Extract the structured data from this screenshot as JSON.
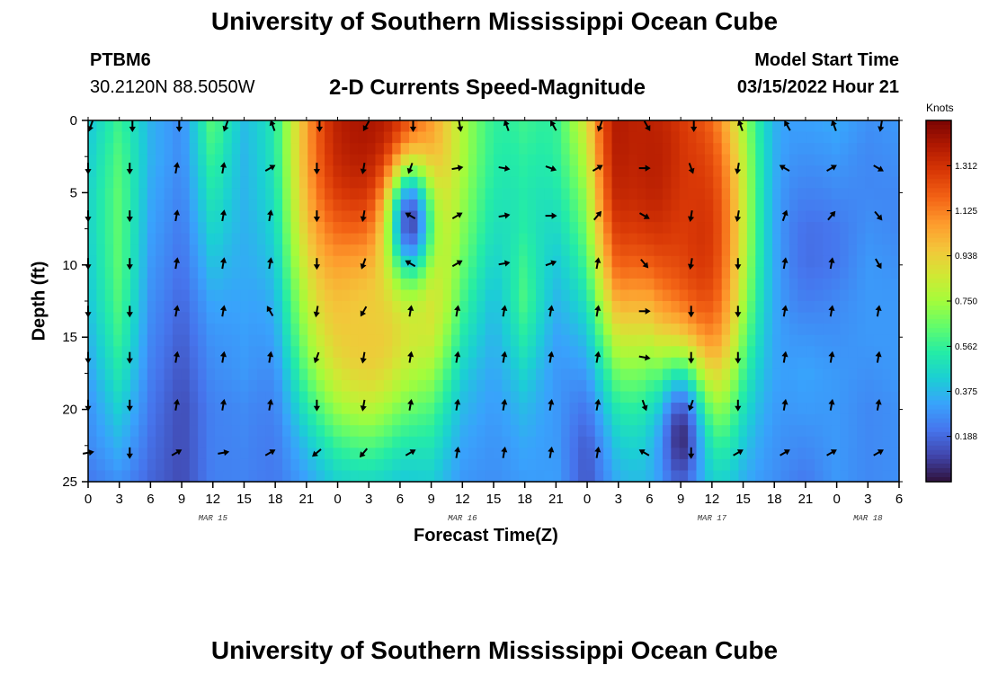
{
  "header": {
    "title": "University of Southern Mississippi Ocean Cube",
    "station_id": "PTBM6",
    "station_coords": "30.2120N  88.5050W",
    "plot_title": "2-D Currents Speed-Magnitude",
    "model_start_label": "Model Start Time",
    "model_start_value": "03/15/2022 Hour 21"
  },
  "footer": {
    "title": "University of Southern Mississippi Ocean Cube"
  },
  "chart_data": {
    "type": "heatmap",
    "title": "2-D Currents Speed-Magnitude",
    "xlabel": "Forecast Time(Z)",
    "ylabel": "Depth (ft)",
    "x_tick_labels": [
      "0",
      "3",
      "6",
      "9",
      "12",
      "15",
      "18",
      "21",
      "0",
      "3",
      "6",
      "9",
      "12",
      "15",
      "18",
      "21",
      "0",
      "3",
      "6",
      "9",
      "12",
      "15",
      "18",
      "21",
      "0",
      "3",
      "6"
    ],
    "x_tick_hours": [
      0,
      3,
      6,
      9,
      12,
      15,
      18,
      21,
      24,
      27,
      30,
      33,
      36,
      39,
      42,
      45,
      48,
      51,
      54,
      57,
      60,
      63,
      66,
      69,
      72,
      75,
      78
    ],
    "xlim": [
      0,
      78
    ],
    "day_labels": [
      {
        "text": "MAR 15",
        "hour": 12
      },
      {
        "text": "MAR 16",
        "hour": 36
      },
      {
        "text": "MAR 17",
        "hour": 60
      },
      {
        "text": "MAR 18",
        "hour": 75
      }
    ],
    "y_ticks": [
      0,
      5,
      10,
      15,
      20,
      25
    ],
    "ylim": [
      0,
      25
    ],
    "y_inverted": true,
    "colorbar": {
      "title": "Knots",
      "ticks": [
        "1.312",
        "1.125",
        "0.938",
        "0.750",
        "0.562",
        "0.375",
        "0.188"
      ],
      "tick_values": [
        1.312,
        1.125,
        0.938,
        0.75,
        0.562,
        0.375,
        0.188
      ],
      "range": [
        0,
        1.5
      ],
      "palette": [
        "#30123b",
        "#4145ab",
        "#4675ed",
        "#39a2fc",
        "#1bcfd4",
        "#24eca6",
        "#61fc6c",
        "#a4fc3b",
        "#d1e834",
        "#f3c63a",
        "#fe9b2d",
        "#f36315",
        "#d93806",
        "#b11901",
        "#7a0403"
      ]
    },
    "speed_profiles": [
      {
        "hour": 0,
        "knots": [
          0.4,
          0.42,
          0.44,
          0.44,
          0.42,
          0.4,
          0.36,
          0.32,
          0.28,
          0.26,
          0.22
        ]
      },
      {
        "hour": 3,
        "knots": [
          0.58,
          0.62,
          0.64,
          0.64,
          0.64,
          0.62,
          0.58,
          0.52,
          0.44,
          0.36,
          0.28
        ]
      },
      {
        "hour": 6,
        "knots": [
          0.36,
          0.36,
          0.34,
          0.32,
          0.3,
          0.28,
          0.26,
          0.24,
          0.22,
          0.2,
          0.18
        ]
      },
      {
        "hour": 9,
        "knots": [
          0.26,
          0.26,
          0.24,
          0.22,
          0.2,
          0.18,
          0.16,
          0.14,
          0.12,
          0.12,
          0.12
        ]
      },
      {
        "hour": 12,
        "knots": [
          0.62,
          0.56,
          0.5,
          0.44,
          0.38,
          0.32,
          0.28,
          0.26,
          0.24,
          0.24,
          0.24
        ]
      },
      {
        "hour": 15,
        "knots": [
          0.28,
          0.26,
          0.26,
          0.26,
          0.26,
          0.26,
          0.26,
          0.26,
          0.24,
          0.24,
          0.24
        ]
      },
      {
        "hour": 18,
        "knots": [
          0.24,
          0.22,
          0.2,
          0.18,
          0.16,
          0.14,
          0.14,
          0.14,
          0.16,
          0.18,
          0.2
        ]
      },
      {
        "hour": 21,
        "knots": [
          0.66,
          0.64,
          0.62,
          0.58,
          0.52,
          0.44,
          0.4,
          0.36,
          0.32,
          0.28,
          0.26
        ]
      },
      {
        "hour": 24,
        "knots": [
          1.2,
          1.14,
          1.06,
          0.96,
          0.86,
          0.74,
          0.62,
          0.52,
          0.44,
          0.38,
          0.34
        ]
      },
      {
        "hour": 27,
        "knots": [
          1.4,
          1.34,
          1.24,
          1.12,
          0.98,
          0.84,
          0.68,
          0.54,
          0.44,
          0.38,
          0.34
        ]
      },
      {
        "hour": 30,
        "knots": [
          0.3,
          0.22,
          0.14,
          0.18,
          0.24,
          0.28,
          0.3,
          0.3,
          0.3,
          0.3,
          0.3
        ]
      },
      {
        "hour": 33,
        "knots": [
          0.36,
          0.34,
          0.36,
          0.42,
          0.52,
          0.58,
          0.54,
          0.46,
          0.4,
          0.38,
          0.36
        ]
      },
      {
        "hour": 36,
        "knots": [
          0.34,
          0.32,
          0.3,
          0.3,
          0.3,
          0.3,
          0.28,
          0.26,
          0.26,
          0.26,
          0.26
        ]
      },
      {
        "hour": 39,
        "knots": [
          0.36,
          0.34,
          0.32,
          0.3,
          0.28,
          0.26,
          0.26,
          0.26,
          0.26,
          0.26,
          0.26
        ]
      },
      {
        "hour": 42,
        "knots": [
          0.5,
          0.46,
          0.44,
          0.46,
          0.52,
          0.56,
          0.5,
          0.42,
          0.36,
          0.32,
          0.3
        ]
      },
      {
        "hour": 45,
        "knots": [
          0.42,
          0.4,
          0.36,
          0.32,
          0.28,
          0.26,
          0.24,
          0.24,
          0.26,
          0.28,
          0.3
        ]
      },
      {
        "hour": 48,
        "knots": [
          0.6,
          0.46,
          0.36,
          0.3,
          0.26,
          0.22,
          0.18,
          0.14,
          0.1,
          0.08,
          0.1
        ]
      },
      {
        "hour": 51,
        "knots": [
          1.42,
          1.38,
          1.28,
          1.1,
          0.92,
          0.72,
          0.54,
          0.42,
          0.34,
          0.3,
          0.28
        ]
      },
      {
        "hour": 54,
        "knots": [
          1.0,
          0.84,
          0.66,
          0.48,
          0.34,
          0.26,
          0.24,
          0.24,
          0.26,
          0.28,
          0.3
        ]
      },
      {
        "hour": 57,
        "knots": [
          0.28,
          0.26,
          0.24,
          0.24,
          0.3,
          0.44,
          0.56,
          0.6,
          0.52,
          0.42,
          0.34
        ]
      },
      {
        "hour": 60,
        "knots": [
          0.24,
          0.22,
          0.2,
          0.22,
          0.3,
          0.44,
          0.52,
          0.48,
          0.4,
          0.34,
          0.3
        ]
      },
      {
        "hour": 63,
        "knots": [
          0.26,
          0.24,
          0.22,
          0.22,
          0.24,
          0.26,
          0.26,
          0.26,
          0.26,
          0.26,
          0.26
        ]
      },
      {
        "hour": 66,
        "knots": [
          0.22,
          0.2,
          0.18,
          0.18,
          0.2,
          0.22,
          0.24,
          0.26,
          0.26,
          0.26,
          0.26
        ]
      },
      {
        "hour": 69,
        "knots": [
          0.3,
          0.26,
          0.22,
          0.18,
          0.18,
          0.22,
          0.28,
          0.32,
          0.3,
          0.26,
          0.22
        ]
      },
      {
        "hour": 72,
        "knots": [
          0.34,
          0.3,
          0.26,
          0.22,
          0.22,
          0.26,
          0.28,
          0.3,
          0.3,
          0.3,
          0.3
        ]
      },
      {
        "hour": 75,
        "knots": [
          0.28,
          0.26,
          0.26,
          0.28,
          0.3,
          0.3,
          0.3,
          0.28,
          0.26,
          0.26,
          0.26
        ]
      },
      {
        "hour": 78,
        "knots": [
          0.3,
          0.28,
          0.26,
          0.26,
          0.28,
          0.3,
          0.3,
          0.3,
          0.28,
          0.28,
          0.28
        ]
      }
    ],
    "profile_depths_ft": [
      0,
      2.5,
      5,
      7.5,
      10,
      12.5,
      15,
      17.5,
      20,
      22.5,
      25
    ],
    "deep_patches": [
      {
        "hour": 28,
        "depth": 2,
        "knots": 1.42,
        "spread_h": 6,
        "spread_d": 10
      },
      {
        "hour": 55,
        "depth": 3,
        "knots": 1.4,
        "spread_h": 5,
        "spread_d": 10
      },
      {
        "hour": 59,
        "depth": 8,
        "knots": 1.3,
        "spread_h": 3,
        "spread_d": 9
      },
      {
        "hour": 27,
        "depth": 14,
        "knots": 0.95,
        "spread_h": 4,
        "spread_d": 5
      },
      {
        "hour": 57,
        "depth": 22,
        "knots": 0.06,
        "spread_h": 1.8,
        "spread_d": 4
      },
      {
        "hour": 31,
        "depth": 7,
        "knots": 0.12,
        "spread_h": 1.6,
        "spread_d": 3
      }
    ],
    "vector_rows_depth_ft": [
      0,
      3.3,
      6.6,
      9.9,
      13.2,
      16.4,
      19.7,
      23
    ],
    "vector_col_hours": [
      0,
      4,
      8.5,
      13,
      17.5,
      22,
      26.5,
      31,
      35.5,
      40,
      44.5,
      49,
      53.5,
      58,
      62.5,
      67,
      71.5,
      76
    ],
    "vector_directions_deg": [
      [
        200,
        180,
        180,
        200,
        340,
        180,
        210,
        180,
        170,
        340,
        330,
        200,
        150,
        180,
        340,
        330,
        340,
        190
      ],
      [
        180,
        180,
        10,
        10,
        60,
        180,
        190,
        200,
        80,
        100,
        110,
        60,
        90,
        160,
        190,
        300,
        60,
        120
      ],
      [
        180,
        180,
        10,
        10,
        10,
        180,
        190,
        300,
        60,
        80,
        90,
        40,
        120,
        190,
        190,
        20,
        40,
        140
      ],
      [
        180,
        180,
        10,
        10,
        10,
        180,
        200,
        300,
        60,
        80,
        70,
        10,
        140,
        190,
        180,
        10,
        10,
        150
      ],
      [
        180,
        180,
        10,
        10,
        330,
        190,
        210,
        10,
        10,
        10,
        10,
        10,
        90,
        180,
        180,
        10,
        10,
        10
      ],
      [
        180,
        180,
        10,
        10,
        10,
        200,
        190,
        10,
        10,
        10,
        10,
        10,
        100,
        180,
        180,
        10,
        10,
        10
      ],
      [
        180,
        180,
        10,
        10,
        10,
        180,
        190,
        10,
        10,
        10,
        10,
        10,
        160,
        200,
        180,
        10,
        10,
        10
      ],
      [
        80,
        180,
        60,
        80,
        60,
        230,
        220,
        60,
        10,
        10,
        10,
        10,
        300,
        180,
        60,
        60,
        60,
        60
      ]
    ]
  }
}
